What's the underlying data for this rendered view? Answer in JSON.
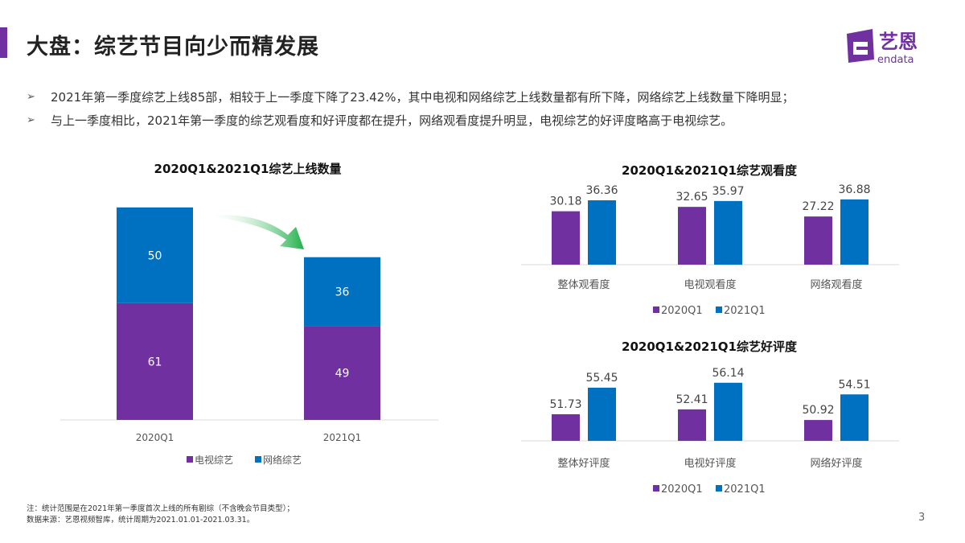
{
  "header": {
    "title": "大盘：综艺节目向少而精发展",
    "logo_text": "艺恩",
    "logo_sub": "endata",
    "accent_color": "#7030a0"
  },
  "bullets": [
    "2021年第一季度综艺上线85部，相较于上一季度下降了23.42%，其中电视和网络综艺上线数量都有所下降，网络综艺上线数量下降明显；",
    "与上一季度相比，2021年第一季度的综艺观看度和好评度都在提升，网络观看度提升明显，电视综艺的好评度略高于电视综艺。"
  ],
  "footnote": {
    "note": "注：统计范围是在2021年第一季度首次上线的所有剧综（不含晚会节目类型）；",
    "source": "数据来源：艺恩视频智库，统计周期为2021.01.01-2021.03.31。"
  },
  "page_number": "3",
  "chart_data": [
    {
      "type": "bar",
      "stacked": true,
      "title": "2020Q1&2021Q1综艺上线数量",
      "categories": [
        "2020Q1",
        "2021Q1"
      ],
      "series": [
        {
          "name": "电视综艺",
          "values": [
            61,
            49
          ],
          "color": "#7030a0"
        },
        {
          "name": "网络综艺",
          "values": [
            50,
            36
          ],
          "color": "#0070c0"
        }
      ],
      "annotation": "green arrow indicating decrease",
      "legend": "bottom",
      "grid": false
    },
    {
      "type": "bar",
      "title": "2020Q1&2021Q1综艺观看度",
      "categories": [
        "整体观看度",
        "电视观看度",
        "网络观看度"
      ],
      "series": [
        {
          "name": "2020Q1",
          "values": [
            30.18,
            32.65,
            27.22
          ],
          "color": "#7030a0"
        },
        {
          "name": "2021Q1",
          "values": [
            36.36,
            35.97,
            36.88
          ],
          "color": "#0070c0"
        }
      ],
      "ylim": [
        0,
        40
      ],
      "legend": "bottom",
      "grid": false
    },
    {
      "type": "bar",
      "title": "2020Q1&2021Q1综艺好评度",
      "categories": [
        "整体好评度",
        "电视好评度",
        "网络好评度"
      ],
      "series": [
        {
          "name": "2020Q1",
          "values": [
            51.73,
            52.41,
            50.92
          ],
          "color": "#7030a0"
        },
        {
          "name": "2021Q1",
          "values": [
            55.45,
            56.14,
            54.51
          ],
          "color": "#0070c0"
        }
      ],
      "ylim": [
        48,
        58
      ],
      "legend": "bottom",
      "grid": false
    }
  ]
}
